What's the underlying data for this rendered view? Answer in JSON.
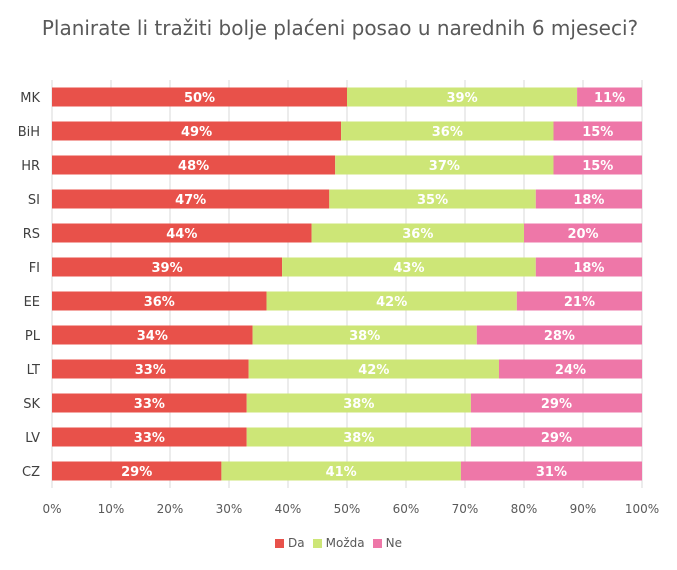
{
  "chart_data": {
    "type": "bar",
    "orientation": "horizontal",
    "stacked": true,
    "title": "Planirate li tražiti bolje plaćeni posao u narednih 6 mjeseci?",
    "categories": [
      "MK",
      "BiH",
      "HR",
      "SI",
      "RS",
      "FI",
      "EE",
      "PL",
      "LT",
      "SK",
      "LV",
      "CZ"
    ],
    "series": [
      {
        "name": "Da",
        "color": "#e8514a",
        "values": [
          50,
          49,
          48,
          47,
          44,
          39,
          36,
          34,
          33,
          33,
          33,
          29
        ]
      },
      {
        "name": "Možda",
        "color": "#cde677",
        "values": [
          39,
          36,
          37,
          35,
          36,
          43,
          42,
          38,
          42,
          38,
          38,
          41
        ]
      },
      {
        "name": "Ne",
        "color": "#ee77a8",
        "values": [
          11,
          15,
          15,
          18,
          20,
          18,
          21,
          28,
          24,
          29,
          29,
          31
        ]
      }
    ],
    "xlim": [
      0,
      100
    ],
    "x_ticks": [
      "0%",
      "10%",
      "20%",
      "30%",
      "40%",
      "50%",
      "60%",
      "70%",
      "80%",
      "90%",
      "100%"
    ],
    "grid": true,
    "legend_position": "bottom",
    "data_label_suffix": "%"
  }
}
